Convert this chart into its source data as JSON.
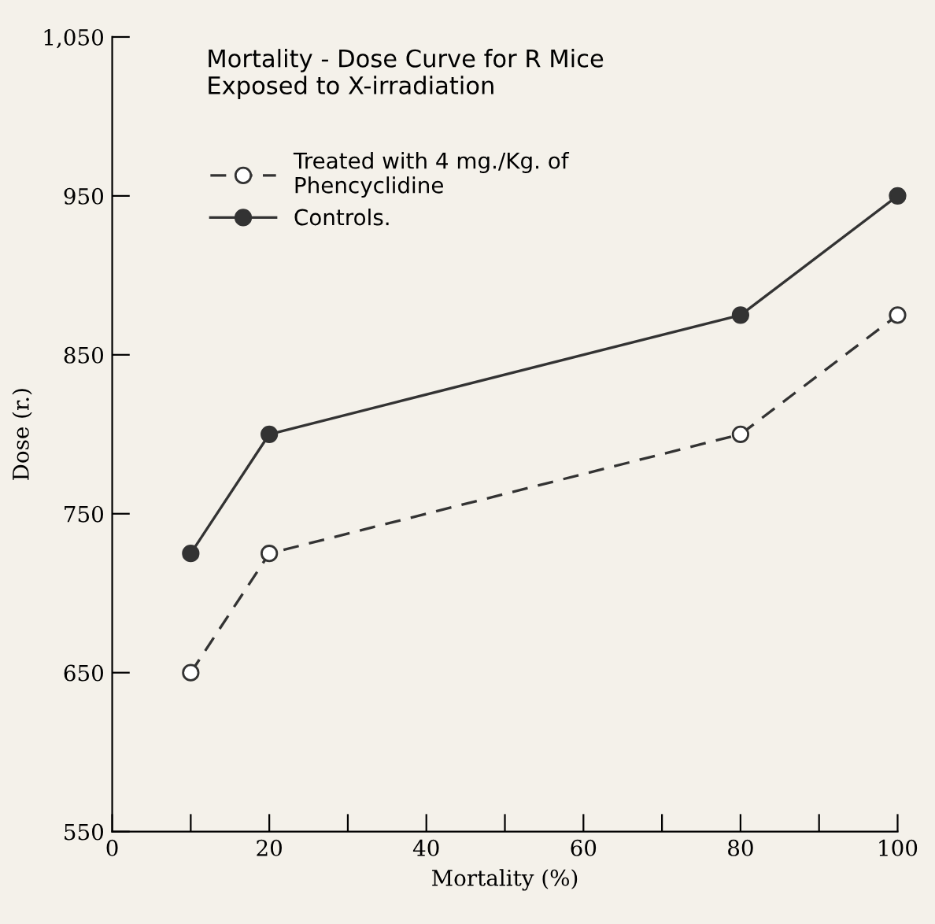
{
  "chart_data": {
    "type": "line",
    "title": "Mortality - Dose Curve for R Mice\nExposed to X-irradiation",
    "xlabel": "Mortality (%)",
    "ylabel": "Dose (r.)",
    "x": [
      10,
      20,
      80,
      100
    ],
    "series": [
      {
        "name": "Treated with 4 mg./Kg. of\nPhencyclidine",
        "color": "#333333",
        "values": [
          650,
          725,
          800,
          875
        ],
        "line_style": "dashed"
      },
      {
        "name": "Controls.",
        "color": "#333333",
        "values": [
          725,
          800,
          875,
          950
        ],
        "line_style": "solid"
      }
    ],
    "marker": "circle",
    "xlim": [
      0,
      100
    ],
    "xticks": [
      0,
      {
        "value": 10,
        "label": null
      },
      20,
      {
        "value": 30,
        "label": null
      },
      40,
      {
        "value": 50,
        "label": null
      },
      60,
      {
        "value": 70,
        "label": null
      },
      80,
      {
        "value": 90,
        "label": null
      },
      100
    ],
    "ylim": [
      550,
      1050
    ],
    "yticks": [
      550,
      650,
      750,
      850,
      950,
      {
        "value": 1050,
        "label": "1,050"
      }
    ],
    "legend": "top",
    "grid": false
  }
}
